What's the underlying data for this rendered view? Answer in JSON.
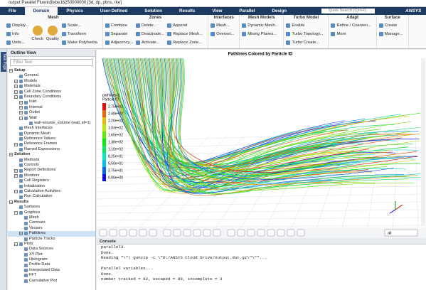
{
  "window": {
    "title": "output Parallel Fluent@xbe16250000000 [3d, dp, pbns, rke]"
  },
  "ribbon": {
    "tabs": [
      "File",
      "Domain",
      "Physics",
      "User-Defined",
      "Solution",
      "Results",
      "View",
      "Parallel",
      "Design"
    ],
    "search": "Quick Search (Ctrl+F)",
    "brand": "ANSYS",
    "groups": [
      {
        "title": "Mesh",
        "columns": [
          [
            "Display...",
            "Info",
            "Units..."
          ],
          [
            "Check"
          ],
          [
            "Quality"
          ],
          [
            "Scale...",
            "Transform",
            "Make Polyhedra"
          ]
        ]
      },
      {
        "title": "Zones",
        "columns": [
          [
            "Combine",
            "Separate",
            "Adjacency..."
          ],
          [
            "Delete...",
            "Deactivate...",
            "Activate..."
          ],
          [
            "Append",
            "Replace Mesh...",
            "Replace Zone..."
          ]
        ]
      },
      {
        "title": "Interfaces",
        "columns": [
          [
            "Mesh...",
            "Overset..."
          ]
        ]
      },
      {
        "title": "Mesh Models",
        "columns": [
          [
            "Dynamic Mesh...",
            "Mixing Planes..."
          ]
        ]
      },
      {
        "title": "Turbo Model",
        "columns": [
          [
            "Enable",
            "Turbo Topology...",
            "Turbo Create..."
          ]
        ]
      },
      {
        "title": "Adapt",
        "columns": [
          [
            "Refine / Coarsen...",
            "More"
          ]
        ]
      },
      {
        "title": "Surface",
        "columns": [
          [
            "Create",
            "Manage..."
          ]
        ]
      }
    ]
  },
  "side_tab": "Task Page",
  "outline": {
    "title": "Outline View",
    "filter": "Filter Text",
    "tree": [
      {
        "label": "Setup",
        "children": [
          {
            "label": "General"
          },
          {
            "label": "Models",
            "expanded": false
          },
          {
            "label": "Materials",
            "expanded": false
          },
          {
            "label": "Cell Zone Conditions",
            "expanded": false
          },
          {
            "label": "Boundary Conditions",
            "children": [
              {
                "label": "Inlet",
                "expanded": false
              },
              {
                "label": "Internal",
                "expanded": false
              },
              {
                "label": "Outlet",
                "expanded": false
              },
              {
                "label": "Wall",
                "children": [
                  {
                    "label": "wall-volume_volume (wall, id=1)"
                  }
                ]
              }
            ]
          },
          {
            "label": "Mesh Interfaces"
          },
          {
            "label": "Dynamic Mesh"
          },
          {
            "label": "Reference Values"
          },
          {
            "label": "Reference Frames",
            "expanded": false
          },
          {
            "label": "Named Expressions"
          }
        ]
      },
      {
        "label": "Solution",
        "children": [
          {
            "label": "Methods"
          },
          {
            "label": "Controls"
          },
          {
            "label": "Report Definitions",
            "expanded": false
          },
          {
            "label": "Monitors",
            "expanded": false
          },
          {
            "label": "Cell Registers"
          },
          {
            "label": "Initialization"
          },
          {
            "label": "Calculation Activities",
            "expanded": false
          },
          {
            "label": "Run Calculation"
          }
        ]
      },
      {
        "label": "Results",
        "children": [
          {
            "label": "Surfaces"
          },
          {
            "label": "Graphics",
            "children": [
              {
                "label": "Mesh"
              },
              {
                "label": "Contours"
              },
              {
                "label": "Vectors"
              },
              {
                "label": "Pathlines",
                "expanded": false
              },
              {
                "label": "Particle Tracks"
              }
            ]
          },
          {
            "label": "Plots",
            "children": [
              {
                "label": "Data Sources"
              },
              {
                "label": "XY Plot"
              },
              {
                "label": "Histogram"
              },
              {
                "label": "Profile Data"
              },
              {
                "label": "Interpolated Data"
              },
              {
                "label": "FFT"
              },
              {
                "label": "Cumulative Plot"
              }
            ]
          }
        ]
      }
    ]
  },
  "graphics": {
    "title": "Pathlines Colored by Particle ID",
    "legend": {
      "title": [
        "pathlines-1",
        "Particle ID"
      ],
      "labels": [
        "2.75e+02",
        "2.48e+02",
        "2.20e+02",
        "1.93e+02",
        "1.65e+02",
        "1.38e+02",
        "1.10e+02",
        "8.25e+01",
        "5.50e+01",
        "2.75e+01",
        "0.00e+00"
      ]
    },
    "view": "all"
  },
  "console": {
    "title": "Console",
    "blocks": [
      [
        "parallel3.",
        "Done.",
        "Reading \"\\\"| gunzip -c \\\"D:/ANSYS Cloud Drive/output.dat.gz\\\"\\\"\"..."
      ],
      [
        "Parallel variables...",
        "Done.",
        "number tracked = 92, escaped = 89, incomplete = 3"
      ]
    ]
  }
}
